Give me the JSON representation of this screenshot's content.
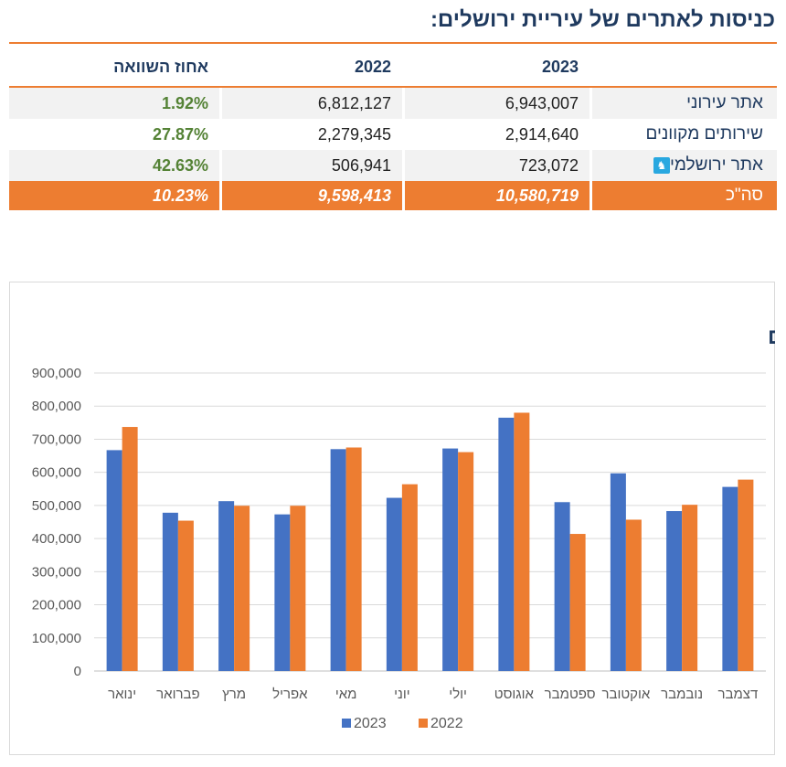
{
  "header": {
    "title": "כניסות לאתרים של עיריית ירושלים:"
  },
  "table": {
    "columns": [
      "2023",
      "2022",
      "אחוז השוואה"
    ],
    "rows": [
      {
        "label": "אתר עירוני",
        "v2023": "6,943,007",
        "v2022": "6,812,127",
        "pct": "1.92%"
      },
      {
        "label": "שירותים מקוונים",
        "v2023": "2,914,640",
        "v2022": "2,279,345",
        "pct": "27.87%"
      },
      {
        "label": "אתר ירושלמי",
        "icon": "jerusalem-lion-icon",
        "v2023": "723,072",
        "v2022": "506,941",
        "pct": "42.63%"
      }
    ],
    "total": {
      "label": "סה\"כ",
      "v2023": "10,580,719",
      "v2022": "9,598,413",
      "pct": "10.23%"
    }
  },
  "colors": {
    "accent": "#ed7d31",
    "series2023": "#4472c4",
    "series2022": "#ed7d31",
    "positive": "#548235",
    "title": "#1f3a5f"
  },
  "chart_data": {
    "type": "bar",
    "title": "כניסות לפי חודשים",
    "categories": [
      "ינואר",
      "פברואר",
      "מרץ",
      "אפריל",
      "מאי",
      "יוני",
      "יולי",
      "אוגוסט",
      "ספטמבר",
      "אוקטובר",
      "נובמבר",
      "דצמבר"
    ],
    "series": [
      {
        "name": "2023",
        "values": [
          667000,
          478000,
          513000,
          473000,
          670000,
          523000,
          672000,
          765000,
          510000,
          597000,
          483000,
          556000
        ]
      },
      {
        "name": "2022",
        "values": [
          737000,
          454000,
          499000,
          499000,
          675000,
          564000,
          661000,
          780000,
          414000,
          457000,
          502000,
          578000
        ]
      }
    ],
    "yticks": [
      "0",
      "100,000",
      "200,000",
      "300,000",
      "400,000",
      "500,000",
      "600,000",
      "700,000",
      "800,000",
      "900,000"
    ],
    "ylim": [
      0,
      900000
    ],
    "grid": true,
    "legend": "bottom"
  }
}
